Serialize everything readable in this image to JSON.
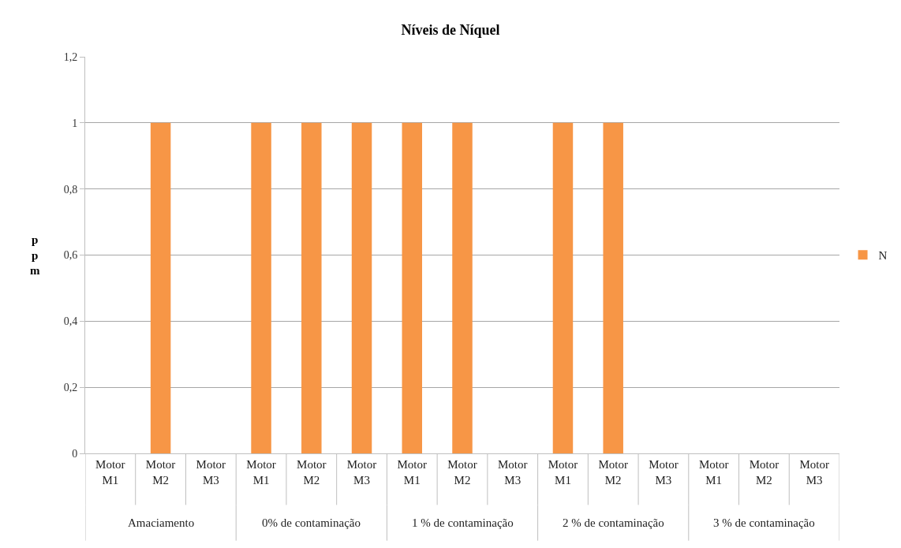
{
  "chart_data": {
    "type": "bar",
    "title": "Níveis de Níquel",
    "ylabel": "ppm",
    "categories": [
      "Motor M1",
      "Motor M2",
      "Motor M3",
      "Motor M1",
      "Motor M2",
      "Motor M3",
      "Motor M1",
      "Motor M2",
      "Motor M3",
      "Motor M1",
      "Motor M2",
      "Motor M3",
      "Motor M1",
      "Motor M2",
      "Motor M3"
    ],
    "series": [
      {
        "name": "N",
        "color": "#f79646",
        "values": [
          0,
          1,
          0,
          1,
          1,
          1,
          1,
          1,
          0,
          1,
          1,
          0,
          0,
          0,
          0
        ]
      }
    ],
    "annotations": [
      "Amaciamento",
      "0% de contaminação",
      "1 % de contaminação",
      "2 % de contaminação",
      "3 % de contaminação"
    ],
    "ylim": [
      0,
      1.2
    ],
    "yticks": [
      {
        "value": 0,
        "label": "0"
      },
      {
        "value": 0.2,
        "label": "0,2"
      },
      {
        "value": 0.4,
        "label": "0,4"
      },
      {
        "value": 0.6,
        "label": "0,6"
      },
      {
        "value": 0.8,
        "label": "0,8"
      },
      {
        "value": 1,
        "label": "1"
      },
      {
        "value": 1.2,
        "label": "1,2"
      }
    ],
    "grid": "y",
    "legend": "right"
  }
}
